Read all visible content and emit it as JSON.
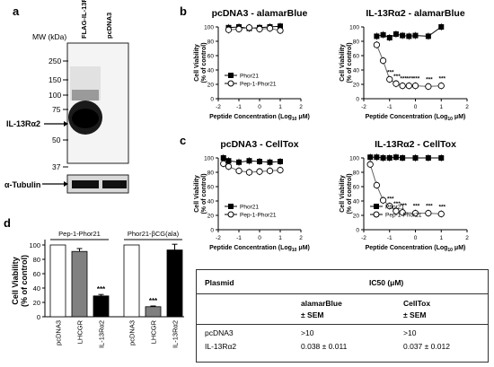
{
  "panel_letters": {
    "a": "a",
    "b": "b",
    "c": "c",
    "d": "d"
  },
  "blot": {
    "mw_label": "MW (kDa)",
    "lanes": [
      "FLAG-IL-13Rα2",
      "pcDNA3"
    ],
    "ladder": [
      "250",
      "150",
      "100",
      "75",
      "50",
      "37"
    ],
    "band_label": "IL-13Rα2",
    "loading_label": "α-Tubulin"
  },
  "chart_data": [
    {
      "type": "line",
      "title": "pcDNA3 - alamarBlue",
      "xlabel": "Peptide Concentration (Log10 μM)",
      "ylabel": "Cell Viability (% of control)",
      "xlim": [
        -2,
        2
      ],
      "ylim": [
        0,
        100
      ],
      "xticks": [
        "-2",
        "-1",
        "0",
        "1",
        "2"
      ],
      "yticks": [
        "0",
        "20",
        "40",
        "60",
        "80",
        "100"
      ],
      "legend": "bottom-left",
      "x": [
        -1.5,
        -1.0,
        -0.5,
        0,
        0.5,
        1.0
      ],
      "series": [
        {
          "name": "Phor21",
          "marker": "filled-square",
          "values": [
            99,
            100,
            98,
            99,
            100,
            101
          ]
        },
        {
          "name": "Pep-1-Phor21",
          "marker": "open-circle",
          "values": [
            96,
            97,
            99,
            97,
            98,
            95
          ]
        }
      ],
      "annotations": []
    },
    {
      "type": "line",
      "title": "IL-13Rα2 - alamarBlue",
      "xlabel": "Peptide Concentration (Log10 μM)",
      "ylabel": "Cell Viability (% of control)",
      "xlim": [
        -2,
        2
      ],
      "ylim": [
        0,
        100
      ],
      "xticks": [
        "-2",
        "-1",
        "0",
        "1",
        "2"
      ],
      "yticks": [
        "0",
        "20",
        "40",
        "60",
        "80",
        "100"
      ],
      "x": [
        -1.5,
        -1.25,
        -1.0,
        -0.75,
        -0.5,
        -0.25,
        0,
        0.5,
        1.0
      ],
      "series": [
        {
          "name": "Phor21",
          "marker": "filled-square",
          "values": [
            87,
            89,
            85,
            90,
            88,
            87,
            88,
            87,
            100
          ]
        },
        {
          "name": "Pep-1-Phor21",
          "marker": "open-circle",
          "values": [
            75,
            53,
            27,
            21,
            18,
            18,
            18,
            17,
            18
          ]
        }
      ],
      "annotations": [
        "***",
        "***",
        "***",
        "***",
        "***",
        "***",
        "***"
      ]
    },
    {
      "type": "line",
      "title": "pcDNA3 - CellTox",
      "xlabel": "Peptide Concentration (Log10 μM)",
      "ylabel": "Cell Viability (% of control)",
      "xlim": [
        -2,
        2
      ],
      "ylim": [
        0,
        100
      ],
      "xticks": [
        "-2",
        "-1",
        "0",
        "1",
        "2"
      ],
      "yticks": [
        "0",
        "20",
        "40",
        "60",
        "80",
        "100"
      ],
      "legend": "bottom-left",
      "x": [
        -1.75,
        -1.5,
        -1.0,
        -0.5,
        0,
        0.5,
        1.0
      ],
      "series": [
        {
          "name": "Phor21",
          "marker": "filled-square",
          "values": [
            100,
            96,
            94,
            96,
            95,
            94,
            95
          ]
        },
        {
          "name": "Pep-1-Phor21",
          "marker": "open-circle",
          "values": [
            92,
            88,
            82,
            80,
            81,
            82,
            83
          ]
        }
      ],
      "annotations": []
    },
    {
      "type": "line",
      "title": "IL-13Rα2 - CellTox",
      "xlabel": "Peptide Concentration (Log10 μM)",
      "ylabel": "Cell Viability (% of control)",
      "xlim": [
        -2,
        2
      ],
      "ylim": [
        0,
        100
      ],
      "xticks": [
        "-2",
        "-1",
        "0",
        "1",
        "2"
      ],
      "yticks": [
        "0",
        "20",
        "40",
        "60",
        "80",
        "100"
      ],
      "legend": "bottom-left",
      "x": [
        -1.75,
        -1.5,
        -1.25,
        -1.0,
        -0.75,
        -0.5,
        0,
        0.5,
        1.0
      ],
      "series": [
        {
          "name": "Phor21",
          "marker": "filled-square",
          "values": [
            101,
            101,
            100,
            100,
            101,
            100,
            100,
            100,
            100
          ]
        },
        {
          "name": "Pep-1-Phor21",
          "marker": "open-circle",
          "values": [
            91,
            62,
            41,
            33,
            26,
            24,
            23,
            23,
            22
          ]
        }
      ],
      "annotations": [
        "***",
        "***",
        "***",
        "***",
        "***",
        "***"
      ]
    },
    {
      "type": "bar",
      "ylabel": "Cell Viability (% of control)",
      "ylim": [
        0,
        100
      ],
      "yticks": [
        "0",
        "20",
        "40",
        "60",
        "80",
        "100"
      ],
      "groups": [
        "Pep-1-Phor21",
        "Phor21-βCG(ala)"
      ],
      "categories": [
        "pcDNA3",
        "LHCGR",
        "IL-13Rα2",
        "pcDNA3",
        "LHCGR",
        "IL-13Rα2"
      ],
      "values": [
        100,
        91,
        29,
        100,
        14,
        93
      ],
      "errors": [
        0,
        4,
        2,
        0,
        1,
        8
      ],
      "fills": [
        "#ffffff",
        "#808080",
        "#000000",
        "#ffffff",
        "#808080",
        "#000000"
      ],
      "annotations": [
        "",
        "",
        "***",
        "",
        "***",
        ""
      ]
    }
  ],
  "table": {
    "header": {
      "plasmid": "Plasmid",
      "ic50": "IC50 (μM)",
      "alamar": "alamarBlue",
      "celltox": "CellTox",
      "sem1": "± SEM",
      "sem2": "± SEM"
    },
    "rows": [
      {
        "plasmid": "pcDNA3",
        "alamar": ">10",
        "celltox": ">10"
      },
      {
        "plasmid": "IL-13Rα2",
        "alamar": "0.038 ± 0.011",
        "celltox": "0.037 ± 0.012"
      }
    ]
  },
  "colors": {
    "line": "#000000",
    "grey_bar": "#808080",
    "open_marker": "#ffffff",
    "grid_line": "#cccccc"
  }
}
